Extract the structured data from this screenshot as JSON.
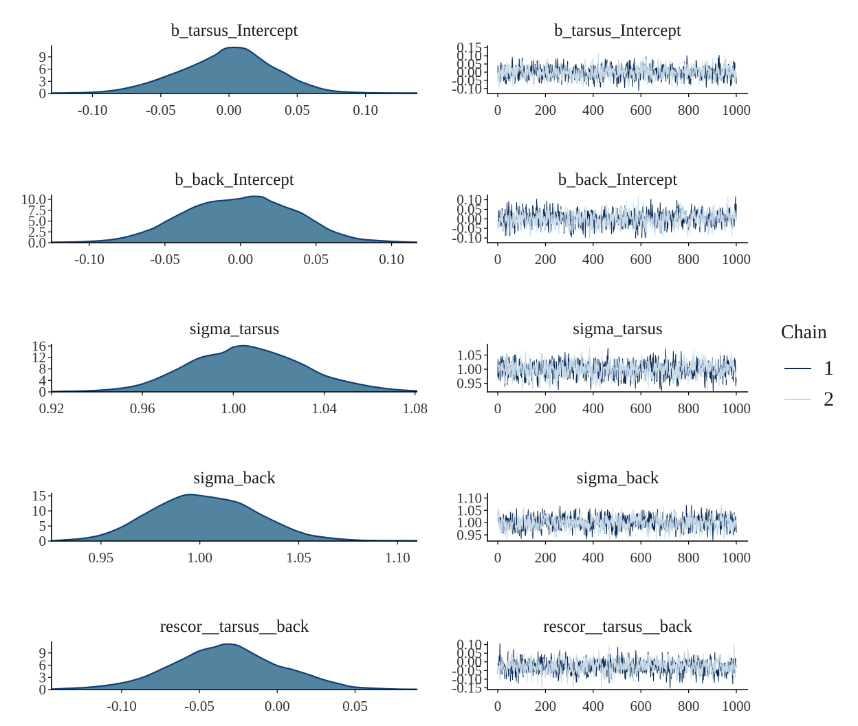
{
  "colors": {
    "density_fill": "#52839f",
    "density_line": "#0e4176",
    "chain1": "#0c2b55",
    "chain2": "#c5d9e8"
  },
  "legend": {
    "title": "Chain",
    "entries": [
      "1",
      "2"
    ]
  },
  "chart_data": [
    {
      "param": "b_tarsus_Intercept",
      "density": {
        "type": "area",
        "title": "b_tarsus_Intercept",
        "xlim": [
          -0.13,
          0.138
        ],
        "ylim": [
          0,
          11.5
        ],
        "xticks": [
          -0.1,
          -0.05,
          0.0,
          0.05,
          0.1
        ],
        "xtick_labels": [
          "-0.10",
          "-0.05",
          "0.00",
          "0.05",
          "0.10"
        ],
        "yticks": [
          0,
          3,
          6,
          9
        ],
        "ytick_labels": [
          "0",
          "3",
          "6",
          "9"
        ],
        "x": [
          -0.13,
          -0.1,
          -0.08,
          -0.06,
          -0.04,
          -0.03,
          -0.02,
          -0.01,
          -0.005,
          0.0,
          0.01,
          0.015,
          0.02,
          0.03,
          0.04,
          0.05,
          0.06,
          0.07,
          0.08,
          0.1,
          0.138
        ],
        "y": [
          0.1,
          0.3,
          1.0,
          2.6,
          5.0,
          6.3,
          7.8,
          9.5,
          10.7,
          11.3,
          11.2,
          10.5,
          9.3,
          6.9,
          5.2,
          3.3,
          2.0,
          1.0,
          0.5,
          0.2,
          0.1
        ]
      },
      "trace": {
        "type": "line",
        "title": "b_tarsus_Intercept",
        "xlim": [
          0,
          1000
        ],
        "ylim": [
          -0.13,
          0.155
        ],
        "xticks": [
          0,
          200,
          400,
          600,
          800,
          1000
        ],
        "xtick_labels": [
          "0",
          "200",
          "400",
          "600",
          "800",
          "1000"
        ],
        "yticks": [
          0.15,
          0.1,
          0.05,
          0.0,
          -0.05,
          -0.1
        ],
        "ytick_labels": [
          "0.15",
          "0.10",
          "0.05",
          "0.00",
          "-0.05",
          "-0.10"
        ],
        "sd": 0.035,
        "mean": 0.0,
        "seed": 11
      }
    },
    {
      "param": "b_back_Intercept",
      "density": {
        "type": "area",
        "title": "b_back_Intercept",
        "xlim": [
          -0.125,
          0.117
        ],
        "ylim": [
          0,
          10.8
        ],
        "xticks": [
          -0.1,
          -0.05,
          0.0,
          0.05,
          0.1
        ],
        "xtick_labels": [
          "-0.10",
          "-0.05",
          "0.00",
          "0.05",
          "0.10"
        ],
        "yticks": [
          0.0,
          2.5,
          5.0,
          7.5,
          10.0
        ],
        "ytick_labels": [
          "0.0",
          "2.5",
          "5.0",
          "7.5",
          "10.0"
        ],
        "x": [
          -0.125,
          -0.1,
          -0.08,
          -0.06,
          -0.05,
          -0.04,
          -0.03,
          -0.02,
          -0.01,
          0.0,
          0.005,
          0.01,
          0.015,
          0.02,
          0.03,
          0.04,
          0.05,
          0.06,
          0.07,
          0.08,
          0.1,
          0.117
        ],
        "y": [
          0.1,
          0.3,
          1.0,
          3.0,
          4.8,
          6.6,
          8.3,
          9.4,
          9.8,
          10.2,
          10.6,
          10.7,
          10.5,
          9.6,
          8.2,
          6.9,
          4.8,
          2.8,
          1.6,
          0.8,
          0.3,
          0.1
        ]
      },
      "trace": {
        "type": "line",
        "title": "b_back_Intercept",
        "xlim": [
          0,
          1000
        ],
        "ylim": [
          -0.125,
          0.12
        ],
        "xticks": [
          0,
          200,
          400,
          600,
          800,
          1000
        ],
        "xtick_labels": [
          "0",
          "200",
          "400",
          "600",
          "800",
          "1000"
        ],
        "yticks": [
          0.1,
          0.05,
          0.0,
          -0.05,
          -0.1
        ],
        "ytick_labels": [
          "0.10",
          "0.05",
          "0.00",
          "-0.05",
          "-0.10"
        ],
        "sd": 0.035,
        "mean": 0.0,
        "seed": 23
      }
    },
    {
      "param": "sigma_tarsus",
      "density": {
        "type": "area",
        "title": "sigma_tarsus",
        "xlim": [
          0.92,
          1.081
        ],
        "ylim": [
          0,
          16.3
        ],
        "xticks": [
          0.92,
          0.96,
          1.0,
          1.04,
          1.08
        ],
        "xtick_labels": [
          "0.92",
          "0.96",
          "1.00",
          "1.04",
          "1.08"
        ],
        "yticks": [
          0,
          4,
          8,
          12,
          16
        ],
        "ytick_labels": [
          "0",
          "4",
          "8",
          "12",
          "16"
        ],
        "x": [
          0.92,
          0.94,
          0.955,
          0.965,
          0.975,
          0.985,
          0.995,
          1.0,
          1.005,
          1.01,
          1.02,
          1.03,
          1.04,
          1.05,
          1.06,
          1.07,
          1.081
        ],
        "y": [
          0.1,
          0.5,
          1.8,
          4.2,
          7.8,
          11.8,
          13.6,
          15.6,
          16.1,
          15.4,
          13.0,
          9.8,
          5.8,
          3.6,
          2.0,
          0.9,
          0.3
        ]
      },
      "trace": {
        "type": "line",
        "title": "sigma_tarsus",
        "xlim": [
          0,
          1000
        ],
        "ylim": [
          0.92,
          1.085
        ],
        "xticks": [
          0,
          200,
          400,
          600,
          800,
          1000
        ],
        "xtick_labels": [
          "0",
          "200",
          "400",
          "600",
          "800",
          "1000"
        ],
        "yticks": [
          1.05,
          1.0,
          0.95
        ],
        "ytick_labels": [
          "1.05",
          "1.00",
          "0.95"
        ],
        "sd": 0.025,
        "mean": 1.0,
        "seed": 37
      }
    },
    {
      "param": "sigma_back",
      "density": {
        "type": "area",
        "title": "sigma_back",
        "xlim": [
          0.925,
          1.11
        ],
        "ylim": [
          0,
          15.5
        ],
        "xticks": [
          0.95,
          1.0,
          1.05,
          1.1
        ],
        "xtick_labels": [
          "0.95",
          "1.00",
          "1.05",
          "1.10"
        ],
        "yticks": [
          0,
          5,
          10,
          15
        ],
        "ytick_labels": [
          "0",
          "5",
          "10",
          "15"
        ],
        "x": [
          0.925,
          0.94,
          0.95,
          0.96,
          0.97,
          0.98,
          0.99,
          0.995,
          1.0,
          1.01,
          1.02,
          1.03,
          1.04,
          1.05,
          1.06,
          1.08,
          1.11
        ],
        "y": [
          0.1,
          0.8,
          2.0,
          4.5,
          8.2,
          11.8,
          14.8,
          15.4,
          15.1,
          14.1,
          12.6,
          9.1,
          5.9,
          3.1,
          1.5,
          0.3,
          0.1
        ]
      },
      "trace": {
        "type": "line",
        "title": "sigma_back",
        "xlim": [
          0,
          1000
        ],
        "ylim": [
          0.925,
          1.115
        ],
        "xticks": [
          0,
          200,
          400,
          600,
          800,
          1000
        ],
        "xtick_labels": [
          "0",
          "200",
          "400",
          "600",
          "800",
          "1000"
        ],
        "yticks": [
          1.1,
          1.05,
          1.0,
          0.95
        ],
        "ytick_labels": [
          "1.10",
          "1.05",
          "1.00",
          "0.95"
        ],
        "sd": 0.025,
        "mean": 1.0,
        "seed": 41
      }
    },
    {
      "param": "rescor__tarsus__back",
      "density": {
        "type": "area",
        "title": "rescor__tarsus__back",
        "xlim": [
          -0.145,
          0.09
        ],
        "ylim": [
          0,
          11.5
        ],
        "xticks": [
          -0.1,
          -0.05,
          0.0,
          0.05
        ],
        "xtick_labels": [
          "-0.10",
          "-0.05",
          "0.00",
          "0.05"
        ],
        "yticks": [
          0,
          3,
          6,
          9
        ],
        "ytick_labels": [
          "0",
          "3",
          "6",
          "9"
        ],
        "x": [
          -0.145,
          -0.12,
          -0.1,
          -0.085,
          -0.07,
          -0.06,
          -0.05,
          -0.04,
          -0.035,
          -0.03,
          -0.025,
          -0.02,
          -0.01,
          0.0,
          0.01,
          0.02,
          0.03,
          0.04,
          0.05,
          0.07,
          0.09
        ],
        "y": [
          0.1,
          0.6,
          1.6,
          3.2,
          5.8,
          7.6,
          9.5,
          10.5,
          11.1,
          11.2,
          10.8,
          9.8,
          7.7,
          5.9,
          4.9,
          3.7,
          2.4,
          1.4,
          0.6,
          0.2,
          0.05
        ]
      },
      "trace": {
        "type": "line",
        "title": "rescor__tarsus__back",
        "xlim": [
          0,
          1000
        ],
        "ylim": [
          -0.16,
          0.11
        ],
        "xticks": [
          0,
          200,
          400,
          600,
          800,
          1000
        ],
        "xtick_labels": [
          "0",
          "200",
          "400",
          "600",
          "800",
          "1000"
        ],
        "yticks": [
          0.1,
          0.05,
          0.0,
          -0.05,
          -0.1,
          -0.15
        ],
        "ytick_labels": [
          "0.10",
          "0.05",
          "0.00",
          "-0.05",
          "-0.10",
          "-0.15"
        ],
        "sd": 0.035,
        "mean": -0.03,
        "seed": 59
      }
    }
  ]
}
